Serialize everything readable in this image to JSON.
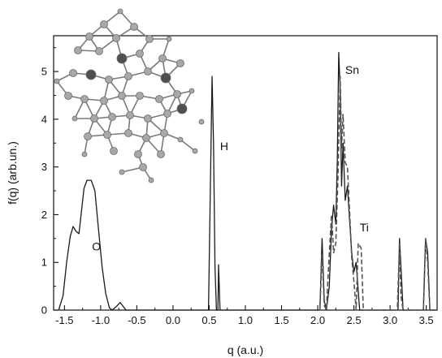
{
  "chart_data": {
    "type": "line",
    "xlabel": "q  (a.u.)",
    "ylabel": "f(q)  (arb.un.)",
    "xlim": [
      -1.65,
      3.65
    ],
    "ylim": [
      0,
      5.75
    ],
    "x_ticks": [
      -1.5,
      -1.0,
      -0.5,
      0.0,
      0.5,
      1.0,
      1.5,
      2.0,
      2.5,
      3.0,
      3.5
    ],
    "x_tick_labels": [
      "-1.5",
      "-1.0",
      "-0.5",
      "0.0",
      "0.5",
      "1.0",
      "1.5",
      "2.0",
      "2.5",
      "3.0",
      "3.5"
    ],
    "y_ticks": [
      0,
      1,
      2,
      3,
      4,
      5
    ],
    "y_tick_labels": [
      "0",
      "1",
      "2",
      "3",
      "4",
      "5"
    ],
    "annotations": [
      {
        "text": "O",
        "x": -1.12,
        "y": 1.25
      },
      {
        "text": "H",
        "x": 0.65,
        "y": 3.35
      },
      {
        "text": "Sn",
        "x": 2.38,
        "y": 4.95
      },
      {
        "text": "Ti",
        "x": 2.58,
        "y": 1.65
      }
    ],
    "series": [
      {
        "style": "solid",
        "points": [
          [
            -1.58,
            0.0
          ],
          [
            -1.52,
            0.3
          ],
          [
            -1.47,
            1.0
          ],
          [
            -1.42,
            1.55
          ],
          [
            -1.38,
            1.75
          ],
          [
            -1.34,
            1.65
          ],
          [
            -1.3,
            1.6
          ],
          [
            -1.27,
            2.0
          ],
          [
            -1.23,
            2.55
          ],
          [
            -1.19,
            2.72
          ],
          [
            -1.13,
            2.72
          ],
          [
            -1.08,
            2.5
          ],
          [
            -1.03,
            1.7
          ],
          [
            -0.98,
            0.9
          ],
          [
            -0.93,
            0.35
          ],
          [
            -0.88,
            0.05
          ],
          [
            -0.84,
            0.0
          ],
          [
            -0.78,
            0.08
          ],
          [
            -0.73,
            0.16
          ],
          [
            -0.69,
            0.08
          ],
          [
            -0.65,
            0.0
          ],
          [
            0.49,
            0.0
          ],
          [
            0.52,
            3.0
          ],
          [
            0.54,
            4.9
          ],
          [
            0.56,
            3.5
          ],
          [
            0.58,
            0.9
          ],
          [
            0.6,
            0.0
          ],
          [
            0.62,
            0.0
          ],
          [
            0.63,
            0.95
          ],
          [
            0.65,
            0.0
          ],
          [
            2.03,
            0.0
          ],
          [
            2.06,
            1.5
          ],
          [
            2.09,
            0.2
          ],
          [
            2.12,
            0.0
          ],
          [
            2.16,
            0.5
          ],
          [
            2.19,
            1.7
          ],
          [
            2.22,
            2.2
          ],
          [
            2.25,
            1.8
          ],
          [
            2.27,
            3.1
          ],
          [
            2.29,
            5.4
          ],
          [
            2.31,
            4.6
          ],
          [
            2.33,
            2.6
          ],
          [
            2.35,
            3.5
          ],
          [
            2.38,
            2.3
          ],
          [
            2.41,
            2.6
          ],
          [
            2.44,
            1.9
          ],
          [
            2.47,
            1.2
          ],
          [
            2.5,
            0.8
          ],
          [
            2.53,
            1.0
          ],
          [
            2.56,
            0.4
          ],
          [
            2.58,
            0.0
          ],
          [
            3.11,
            0.0
          ],
          [
            3.13,
            1.5
          ],
          [
            3.16,
            0.6
          ],
          [
            3.18,
            0.0
          ],
          [
            3.46,
            0.0
          ],
          [
            3.49,
            1.5
          ],
          [
            3.52,
            1.2
          ],
          [
            3.55,
            0.0
          ],
          [
            3.63,
            0.0
          ]
        ]
      },
      {
        "style": "dashed",
        "points": [
          [
            2.03,
            0.0
          ],
          [
            2.06,
            1.2
          ],
          [
            2.09,
            0.1
          ],
          [
            2.12,
            0.0
          ],
          [
            2.16,
            1.2
          ],
          [
            2.19,
            2.0
          ],
          [
            2.22,
            1.2
          ],
          [
            2.25,
            1.4
          ],
          [
            2.28,
            2.8
          ],
          [
            2.31,
            4.9
          ],
          [
            2.33,
            3.4
          ],
          [
            2.35,
            4.1
          ],
          [
            2.38,
            3.1
          ],
          [
            2.41,
            3.0
          ],
          [
            2.44,
            2.1
          ],
          [
            2.47,
            1.1
          ],
          [
            2.5,
            0.6
          ],
          [
            2.53,
            0.0
          ],
          [
            2.56,
            1.4
          ],
          [
            2.6,
            1.3
          ],
          [
            2.63,
            0.0
          ],
          [
            3.1,
            0.0
          ],
          [
            3.13,
            1.4
          ],
          [
            3.15,
            0.3
          ],
          [
            3.18,
            0.0
          ],
          [
            3.46,
            0.0
          ],
          [
            3.49,
            1.5
          ],
          [
            3.52,
            1.0
          ],
          [
            3.55,
            0.0
          ]
        ]
      }
    ]
  },
  "inset": {
    "picture": "molecular-cluster",
    "bond_color": "#7a7a7a",
    "atom_color": "#a8a8a8",
    "metal_color": "#4f4f4f"
  }
}
